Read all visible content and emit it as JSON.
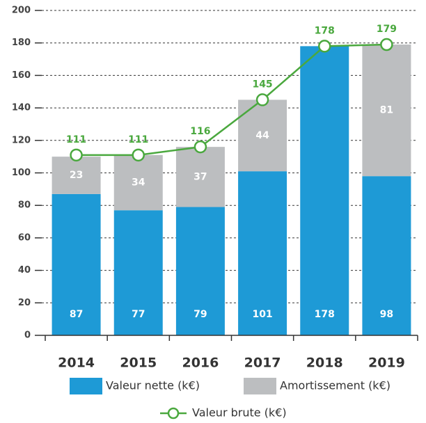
{
  "chart_data": {
    "type": "bar",
    "categories": [
      "2014",
      "2015",
      "2016",
      "2017",
      "2018",
      "2019"
    ],
    "series": [
      {
        "name": "Valeur nette (k€)",
        "color": "#1e9ad6",
        "values": [
          87,
          77,
          79,
          101,
          178,
          98
        ],
        "stack": true
      },
      {
        "name": "Amortissement (k€)",
        "color": "#bcbec0",
        "values": [
          23,
          34,
          37,
          44,
          null,
          81
        ],
        "stack": true
      },
      {
        "name": "Valeur brute (k€)",
        "color": "#4aa83e",
        "values": [
          111,
          111,
          116,
          145,
          178,
          179
        ],
        "type": "line"
      }
    ],
    "ylim": [
      0,
      200
    ],
    "yticks": [
      0,
      20,
      40,
      60,
      80,
      100,
      120,
      140,
      160,
      180,
      200
    ],
    "grid": true
  }
}
